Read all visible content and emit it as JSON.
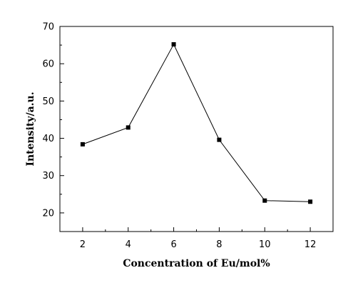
{
  "chart_data": {
    "type": "line",
    "xlabel": "Concentration of Eu/mol%",
    "ylabel": "Intensity/a.u.",
    "x_ticks": [
      "2",
      "4",
      "6",
      "8",
      "10",
      "12"
    ],
    "y_ticks": [
      "20",
      "30",
      "40",
      "50",
      "60",
      "70"
    ],
    "xlim": [
      1,
      13
    ],
    "ylim": [
      15,
      70
    ],
    "grid": false,
    "legend": "none",
    "series": [
      {
        "x": [
          2,
          4,
          6,
          8,
          10,
          12
        ],
        "values": [
          38.4,
          42.9,
          65.2,
          39.6,
          23.3,
          23.0
        ]
      }
    ],
    "colors": {
      "line": "#000000",
      "marker": "#000000",
      "axis": "#000000",
      "background": "#ffffff"
    }
  }
}
